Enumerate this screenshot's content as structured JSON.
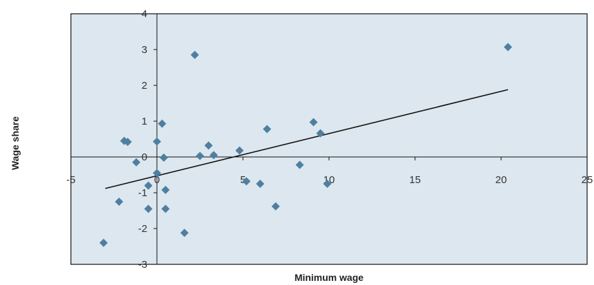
{
  "chart_data": {
    "type": "scatter",
    "title": "",
    "xlabel": "Minimum wage",
    "ylabel": "Wage share",
    "xlim": [
      -5,
      25
    ],
    "ylim": [
      -3,
      4
    ],
    "x_ticks": [
      -5,
      0,
      5,
      10,
      15,
      20,
      25
    ],
    "y_ticks": [
      -3,
      -2,
      -1,
      0,
      1,
      2,
      3,
      4
    ],
    "grid": false,
    "legend": "none",
    "colors": {
      "plot_background": "#dce7ef",
      "marker": "#4f7fa0",
      "trend_line": "#111111",
      "frame": "#111111"
    },
    "series": [
      {
        "values": [
          {
            "x": -3.1,
            "y": -2.4
          },
          {
            "x": -2.2,
            "y": -1.25
          },
          {
            "x": -1.9,
            "y": 0.45
          },
          {
            "x": -1.7,
            "y": 0.42
          },
          {
            "x": -1.2,
            "y": -0.15
          },
          {
            "x": -0.5,
            "y": -0.8
          },
          {
            "x": -0.5,
            "y": -1.45
          },
          {
            "x": 0.0,
            "y": 0.43
          },
          {
            "x": 0.0,
            "y": -0.45
          },
          {
            "x": 0.3,
            "y": 0.93
          },
          {
            "x": 0.4,
            "y": -0.02
          },
          {
            "x": 0.5,
            "y": -0.92
          },
          {
            "x": 0.5,
            "y": -1.45
          },
          {
            "x": 1.6,
            "y": -2.12
          },
          {
            "x": 2.2,
            "y": 2.85
          },
          {
            "x": 2.5,
            "y": 0.03
          },
          {
            "x": 3.0,
            "y": 0.32
          },
          {
            "x": 3.3,
            "y": 0.05
          },
          {
            "x": 4.8,
            "y": 0.18
          },
          {
            "x": 5.2,
            "y": -0.68
          },
          {
            "x": 6.0,
            "y": -0.75
          },
          {
            "x": 6.4,
            "y": 0.78
          },
          {
            "x": 6.9,
            "y": -1.38
          },
          {
            "x": 8.3,
            "y": -0.22
          },
          {
            "x": 9.1,
            "y": 0.97
          },
          {
            "x": 9.5,
            "y": 0.66
          },
          {
            "x": 9.9,
            "y": -0.75
          },
          {
            "x": 20.4,
            "y": 3.07
          }
        ]
      }
    ],
    "trend_line": {
      "x": [
        -3.0,
        20.4
      ],
      "y": [
        -0.88,
        1.88
      ]
    }
  }
}
